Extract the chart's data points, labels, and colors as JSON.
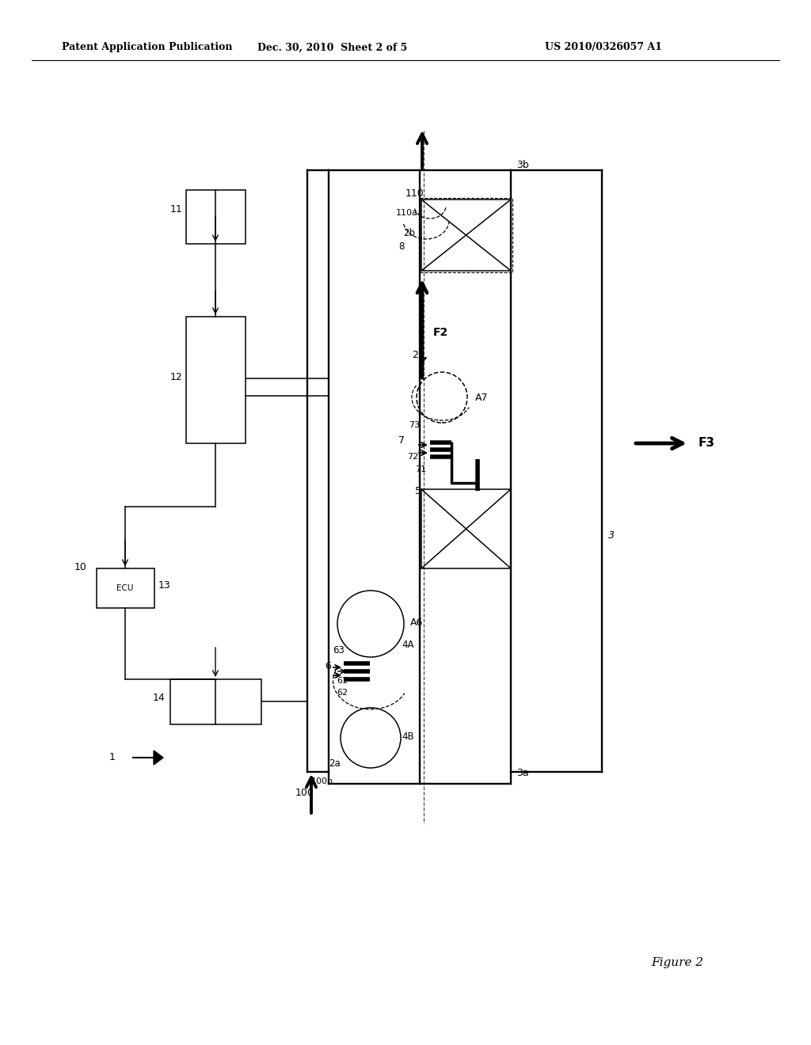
{
  "bg_color": "#ffffff",
  "header_left": "Patent Application Publication",
  "header_center": "Dec. 30, 2010  Sheet 2 of 5",
  "header_right": "US 2010/0326057 A1",
  "figure_label": "Figure 2"
}
